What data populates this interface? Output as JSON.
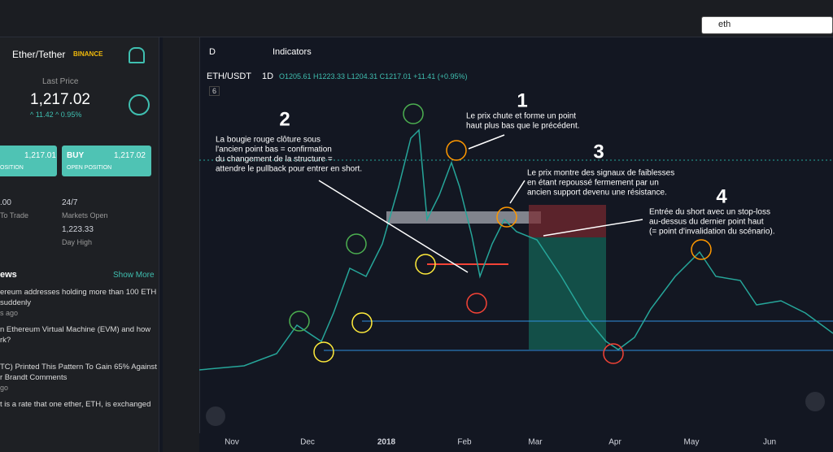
{
  "search": {
    "query": "eth"
  },
  "sidebar": {
    "pair": "Ether/Tether",
    "exchange": "BINANCE",
    "last_price_label": "Last Price",
    "last_price": "1,217.02",
    "change": "^ 11.42  ^ 0.95%",
    "sell": {
      "price": "1,217.01",
      "caption": "OSITION"
    },
    "buy": {
      "label": "BUY",
      "price": "1,217.02",
      "caption": "OPEN POSITION"
    },
    "stats": [
      {
        "value": ".00",
        "label": "To Trade"
      },
      {
        "value": "24/7",
        "label": "Markets Open"
      },
      {
        "value": "1,223.33",
        "label": "Day High"
      }
    ],
    "news_title": "ews",
    "show_more": "Show More",
    "news": [
      {
        "lines": [
          "ereum addresses holding more than 100 ETH",
          "suddenly"
        ],
        "meta": "s ago"
      },
      {
        "lines": [
          "n Ethereum Virtual Machine (EVM) and how",
          "rk?"
        ],
        "meta": ""
      },
      {
        "lines": [
          "TC) Printed This Pattern To Gain 65% Against",
          "r Brandt Comments"
        ],
        "meta": "go"
      },
      {
        "lines": [
          "t is a rate that one ether, ETH, is exchanged"
        ],
        "meta": ""
      }
    ]
  },
  "toolbar": {
    "interval": "D",
    "indicators": "Indicators"
  },
  "chart": {
    "symbol": "ETH/USDT",
    "timeframe": "1D",
    "ohlc": "O1205.61 H1223.33 L1204.31 C1217.01 +11.41 (+0.95%)",
    "collapse_count": "6",
    "x_labels": [
      "Nov",
      "Dec",
      "2018",
      "Feb",
      "Mar",
      "Apr",
      "May",
      "Jun"
    ]
  },
  "annotations": [
    {
      "number": "1",
      "lines": [
        "Le prix chute et forme un point",
        "haut plus bas que le précédent."
      ]
    },
    {
      "number": "2",
      "lines": [
        "La bougie rouge clôture sous",
        "l'ancien point bas = confirmation",
        "du changement de la structure =",
        "attendre le pullback pour entrer en short."
      ]
    },
    {
      "number": "3",
      "lines": [
        "Le prix montre des signaux de faiblesses",
        "en étant repoussé fermement par un",
        "ancien support devenu une résistance."
      ]
    },
    {
      "number": "4",
      "lines": [
        "Entrée du short avec un stop-loss",
        "au-dessus du dernier point haut",
        "(= point d'invalidation du scénario)."
      ]
    }
  ]
}
